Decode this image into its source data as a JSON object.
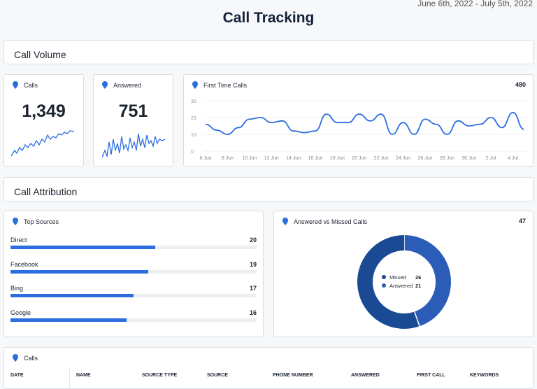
{
  "header": {
    "title": "Call Tracking",
    "date_range": "June 6th, 2022 - July 5th, 2022"
  },
  "sections": {
    "volume": "Call Volume",
    "attribution": "Call Attribution"
  },
  "calls_card": {
    "title": "Calls",
    "value": "1,349"
  },
  "answered_card": {
    "title": "Answered",
    "value": "751"
  },
  "first_time": {
    "title": "First Time Calls",
    "total": "480"
  },
  "top_sources": {
    "title": "Top Sources",
    "items": [
      {
        "label": "Direct",
        "value": 20
      },
      {
        "label": "Facebook",
        "value": 19
      },
      {
        "label": "Bing",
        "value": 17
      },
      {
        "label": "Google",
        "value": 16
      }
    ]
  },
  "answered_missed": {
    "title": "Answered vs Missed Calls",
    "total": "47",
    "legend": [
      {
        "label": "Missed",
        "value": 26,
        "color": "#1a4a94"
      },
      {
        "label": "Answered",
        "value": 21,
        "color": "#2a5cb8"
      }
    ]
  },
  "calls_table": {
    "title": "Calls",
    "columns": [
      "DATE",
      "NAME",
      "SOURCE TYPE",
      "SOURCE",
      "PHONE NUMBER",
      "ANSWERED",
      "FIRST CALL",
      "KEYWORDS"
    ]
  },
  "colors": {
    "accent": "#2a6ee0",
    "missed": "#1a4a94",
    "answered": "#2a5cb8"
  },
  "chart_data": {
    "type": "line",
    "x": [
      "6 Jun",
      "7 Jun",
      "8 Jun",
      "9 Jun",
      "10 Jun",
      "11 Jun",
      "12 Jun",
      "13 Jun",
      "14 Jun",
      "15 Jun",
      "16 Jun",
      "17 Jun",
      "18 Jun",
      "19 Jun",
      "20 Jun",
      "21 Jun",
      "22 Jun",
      "23 Jun",
      "24 Jun",
      "25 Jun",
      "26 Jun",
      "27 Jun",
      "28 Jun",
      "29 Jun",
      "30 Jun",
      "1 Jul",
      "2 Jul",
      "3 Jul",
      "4 Jul",
      "5 Jul"
    ],
    "values": [
      16,
      12.5,
      10,
      14,
      19,
      20,
      17,
      18,
      12,
      11,
      12,
      22,
      17,
      17,
      22,
      18,
      22,
      10,
      17,
      10,
      19,
      16,
      10,
      18,
      15,
      16,
      20,
      14,
      23,
      13
    ],
    "xticks": [
      "6 Jun",
      "8 Jun",
      "10 Jun",
      "12 Jun",
      "14 Jun",
      "16 Jun",
      "18 Jun",
      "20 Jun",
      "22 Jun",
      "24 Jun",
      "26 Jun",
      "28 Jun",
      "30 Jun",
      "2 Jul",
      "4 Jul"
    ],
    "yticks": [
      0,
      10,
      20,
      30
    ],
    "ylim": [
      0,
      30
    ],
    "grid": true
  }
}
